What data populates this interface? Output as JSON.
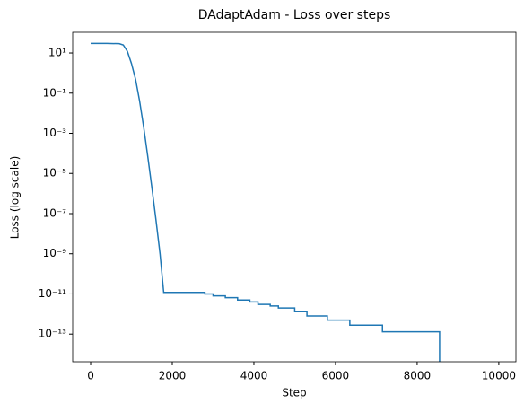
{
  "chart_data": {
    "type": "line",
    "title": "DAdaptAdam - Loss over steps",
    "xlabel": "Step",
    "ylabel": "Loss (log scale)",
    "log_y": true,
    "x": [
      0,
      400,
      700,
      800,
      900,
      1000,
      1100,
      1200,
      1300,
      1400,
      1500,
      1600,
      1700,
      1790,
      2550,
      2800,
      2800,
      3000,
      3000,
      3300,
      3300,
      3600,
      3600,
      3900,
      3900,
      4100,
      4100,
      4400,
      4400,
      4600,
      4600,
      5000,
      5000,
      5300,
      5300,
      5800,
      5800,
      6350,
      6350,
      7150,
      7150,
      8550,
      8550
    ],
    "series": [
      {
        "name": "Loss",
        "color": "#1f77b4",
        "values": [
          30,
          30,
          29,
          25,
          12,
          3,
          0.5,
          0.04,
          0.002,
          7e-05,
          2e-06,
          5e-08,
          1e-09,
          1.2e-11,
          1.2e-11,
          1.2e-11,
          1e-11,
          1e-11,
          8e-12,
          8e-12,
          6.5e-12,
          6.5e-12,
          5e-12,
          5e-12,
          4e-12,
          4e-12,
          3e-12,
          3e-12,
          2.5e-12,
          2.5e-12,
          2e-12,
          2e-12,
          1.3e-12,
          1.3e-12,
          8e-13,
          8e-13,
          5e-13,
          5e-13,
          2.8e-13,
          2.8e-13,
          1.3e-13,
          1.3e-13,
          1e-15
        ]
      }
    ],
    "xlim": [
      -440,
      10420
    ],
    "xticks": [
      0,
      2000,
      4000,
      6000,
      8000,
      10000
    ],
    "ylim": [
      4.2e-15,
      107
    ],
    "yticks": [
      {
        "value": 10,
        "label": "10¹"
      },
      {
        "value": 0.1,
        "label": "10⁻¹"
      },
      {
        "value": 0.001,
        "label": "10⁻³"
      },
      {
        "value": 1e-05,
        "label": "10⁻⁵"
      },
      {
        "value": 1e-07,
        "label": "10⁻⁷"
      },
      {
        "value": 1e-09,
        "label": "10⁻⁹"
      },
      {
        "value": 1e-11,
        "label": "10⁻¹¹"
      },
      {
        "value": 1e-13,
        "label": "10⁻¹³"
      }
    ]
  }
}
